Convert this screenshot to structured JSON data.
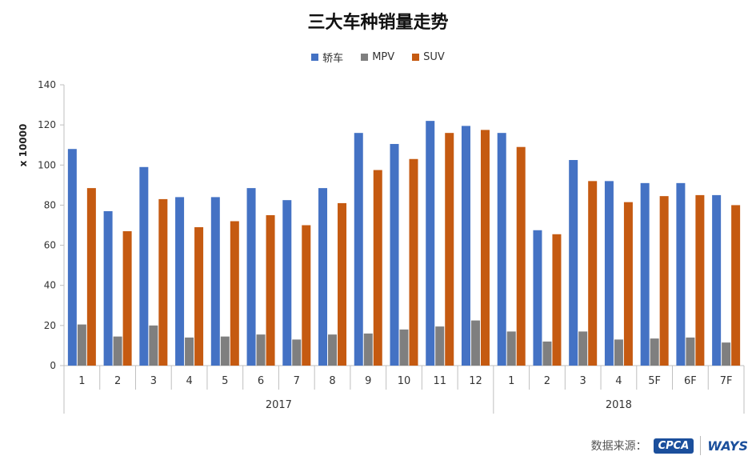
{
  "chart_data": {
    "type": "bar",
    "title": "三大车种销量走势",
    "ylabel": "x 10000",
    "xlabel": "",
    "ylim": [
      0,
      140
    ],
    "yticks": [
      0,
      20,
      40,
      60,
      80,
      100,
      120,
      140
    ],
    "categories": [
      "1",
      "2",
      "3",
      "4",
      "5",
      "6",
      "7",
      "8",
      "9",
      "10",
      "11",
      "12",
      "1",
      "2",
      "3",
      "4",
      "5F",
      "6F",
      "7F"
    ],
    "groups": [
      {
        "label": "2017",
        "start": 0,
        "end": 11
      },
      {
        "label": "2018",
        "start": 12,
        "end": 18
      }
    ],
    "series": [
      {
        "name": "轿车",
        "color": "#4472C4",
        "values": [
          108,
          77,
          99,
          84,
          84,
          88.5,
          82.5,
          88.5,
          116,
          110.5,
          122,
          119.5,
          116,
          67.5,
          102.5,
          92,
          91,
          91,
          85
        ]
      },
      {
        "name": "MPV",
        "color": "#7F7F7F",
        "values": [
          20.5,
          14.5,
          20,
          14,
          14.5,
          15.5,
          13,
          15.5,
          16,
          18,
          19.5,
          22.5,
          17,
          12,
          17,
          13,
          13.5,
          14,
          11.5
        ]
      },
      {
        "name": "SUV",
        "color": "#C55A11",
        "values": [
          88.5,
          67,
          83,
          69,
          72,
          75,
          70,
          81,
          97.5,
          103,
          116,
          117.5,
          109,
          65.5,
          92,
          81.5,
          84.5,
          85,
          80
        ]
      }
    ],
    "legend_position": "top-center",
    "grid": false
  },
  "footer": {
    "source_label": "数据来源：",
    "logos": [
      "cpca-logo",
      "ways-logo"
    ]
  }
}
